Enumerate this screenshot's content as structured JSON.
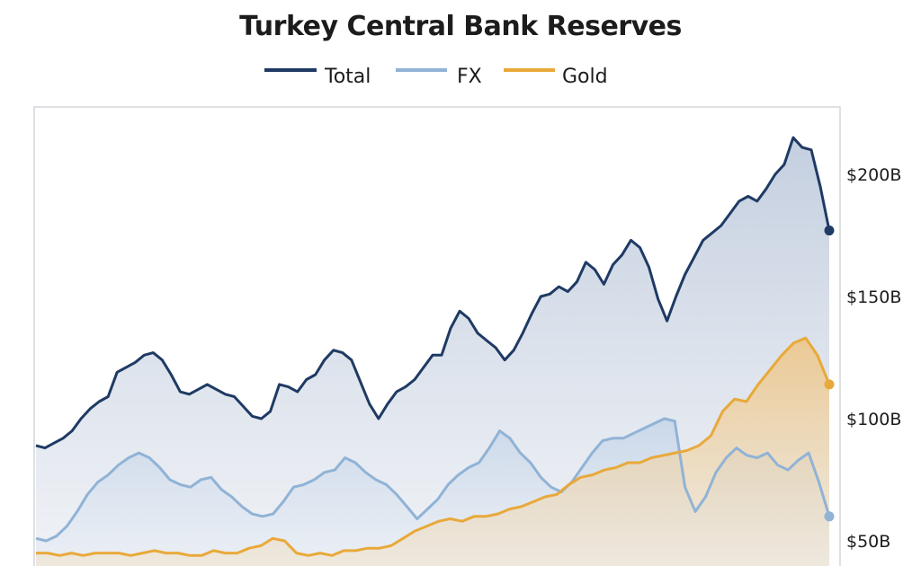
{
  "chart_data": {
    "type": "line",
    "title": "Turkey Central Bank Reserves",
    "xlabel": "",
    "ylabel": "",
    "y_ticks": [
      {
        "value": 200,
        "label": "$200B"
      },
      {
        "value": 150,
        "label": "$150B"
      },
      {
        "value": 100,
        "label": "$100B"
      },
      {
        "value": 50,
        "label": "$50B"
      }
    ],
    "ylim": [
      45,
      225
    ],
    "grid": false,
    "legend_position": "top-center",
    "area_fill": true,
    "end_markers": true,
    "series": [
      {
        "name": "Total",
        "color": "#1f3a64",
        "fill": "#b9c6da",
        "values": [
          89,
          88,
          90,
          92,
          95,
          100,
          104,
          107,
          109,
          119,
          121,
          123,
          126,
          127,
          124,
          118,
          111,
          110,
          112,
          114,
          112,
          110,
          109,
          105,
          101,
          100,
          103,
          114,
          113,
          111,
          116,
          118,
          124,
          128,
          127,
          124,
          115,
          106,
          100,
          106,
          111,
          113,
          116,
          121,
          126,
          126,
          137,
          144,
          141,
          135,
          132,
          129,
          124,
          128,
          135,
          143,
          150,
          151,
          154,
          152,
          156,
          164,
          161,
          155,
          163,
          167,
          173,
          170,
          162,
          149,
          140,
          150,
          159,
          166,
          173,
          176,
          179,
          184,
          189,
          191,
          189,
          194,
          200,
          204,
          215,
          211,
          210,
          195,
          177
        ]
      },
      {
        "name": "FX",
        "color": "#90b3d6",
        "fill": "#cddaea",
        "values": [
          51,
          50,
          52,
          56,
          62,
          69,
          74,
          77,
          81,
          84,
          86,
          84,
          80,
          75,
          73,
          72,
          75,
          76,
          71,
          68,
          64,
          61,
          60,
          61,
          66,
          72,
          73,
          75,
          78,
          79,
          84,
          82,
          78,
          75,
          73,
          69,
          64,
          59,
          63,
          67,
          73,
          77,
          80,
          82,
          88,
          95,
          92,
          86,
          82,
          76,
          72,
          70,
          74,
          80,
          86,
          91,
          92,
          92,
          94,
          96,
          98,
          100,
          99,
          72,
          62,
          68,
          78,
          84,
          88,
          85,
          84,
          86,
          81,
          79,
          83,
          86,
          74,
          60
        ]
      },
      {
        "name": "Gold",
        "color": "#e8a93a",
        "fill": "#f0c98c",
        "values": [
          45,
          45,
          44,
          45,
          44,
          45,
          45,
          45,
          44,
          45,
          46,
          45,
          45,
          44,
          44,
          46,
          45,
          45,
          47,
          48,
          51,
          50,
          45,
          44,
          45,
          44,
          46,
          46,
          47,
          47,
          48,
          51,
          54,
          56,
          58,
          59,
          58,
          60,
          60,
          61,
          63,
          64,
          66,
          68,
          69,
          73,
          76,
          77,
          79,
          80,
          82,
          82,
          84,
          85,
          86,
          87,
          89,
          93,
          103,
          108,
          107,
          114,
          120,
          126,
          131,
          133,
          126,
          114
        ]
      }
    ]
  }
}
